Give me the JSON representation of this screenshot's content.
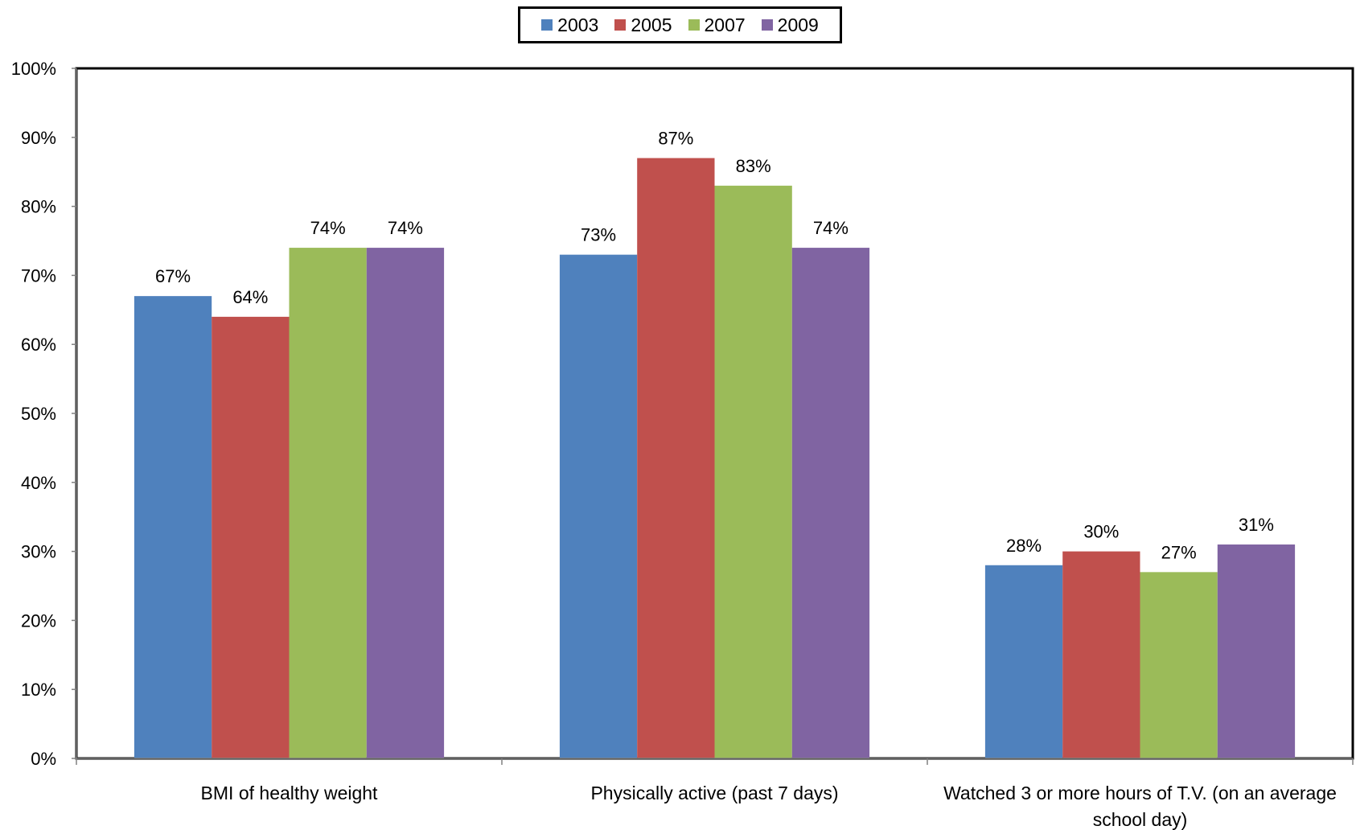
{
  "chart_data": {
    "type": "bar",
    "categories": [
      "BMI of healthy weight",
      "Physically active (past 7 days)",
      "Watched 3 or more hours of T.V. (on an average school day)"
    ],
    "category_lines": [
      [
        "BMI of healthy weight"
      ],
      [
        "Physically active (past 7 days)"
      ],
      [
        "Watched 3 or more hours of T.V. (on an average",
        "school day)"
      ]
    ],
    "series": [
      {
        "name": "2003",
        "color": "#4F81BD",
        "values": [
          67,
          73,
          28
        ]
      },
      {
        "name": "2005",
        "color": "#C0504D",
        "values": [
          64,
          87,
          30
        ]
      },
      {
        "name": "2007",
        "color": "#9BBB59",
        "values": [
          74,
          83,
          27
        ]
      },
      {
        "name": "2009",
        "color": "#8064A2",
        "values": [
          74,
          74,
          31
        ]
      }
    ],
    "data_labels": [
      [
        "67%",
        "73%",
        "28%"
      ],
      [
        "64%",
        "87%",
        "30%"
      ],
      [
        "74%",
        "83%",
        "27%"
      ],
      [
        "74%",
        "74%",
        "31%"
      ]
    ],
    "yticks": [
      0,
      10,
      20,
      30,
      40,
      50,
      60,
      70,
      80,
      90,
      100
    ],
    "ytick_labels": [
      "0%",
      "10%",
      "20%",
      "30%",
      "40%",
      "50%",
      "60%",
      "70%",
      "80%",
      "90%",
      "100%"
    ],
    "ylim": [
      0,
      100
    ],
    "grid": false,
    "legend_position": "top-center"
  }
}
